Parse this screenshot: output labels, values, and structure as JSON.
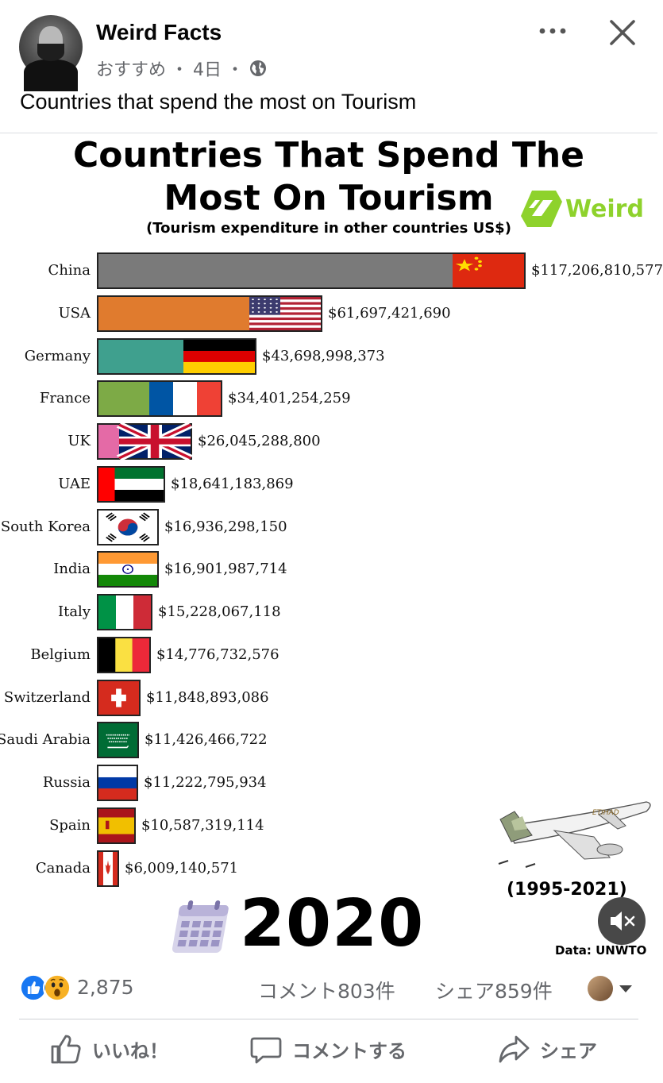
{
  "post": {
    "page_name": "Weird Facts",
    "meta_label": "おすすめ",
    "meta_time": "4日",
    "meta_sep": "・",
    "caption": "Countries that spend the most on Tourism"
  },
  "video": {
    "title_line1": "Countries That Spend The",
    "title_line2": "Most On Tourism",
    "subtitle": "(Tourism expenditure in other countries US$)",
    "logo_text": "Weird",
    "year": "2020",
    "period": "(1995-2021)",
    "source": "Data: UNWTO",
    "plane_livery": "ETIHAD"
  },
  "chart_data": {
    "type": "bar",
    "orientation": "horizontal",
    "title": "Countries That Spend The Most On Tourism",
    "subtitle": "(Tourism expenditure in other countries US$)",
    "categories": [
      "China",
      "USA",
      "Germany",
      "France",
      "UK",
      "UAE",
      "South Korea",
      "India",
      "Italy",
      "Belgium",
      "Switzerland",
      "Saudi Arabia",
      "Russia",
      "Spain",
      "Canada"
    ],
    "values": [
      117206810577,
      61697421690,
      43698998373,
      34401254259,
      26045288800,
      18641183869,
      16936298150,
      16901987714,
      15228067118,
      14776732576,
      11848893086,
      11426466722,
      11222795934,
      10587319114,
      6009140571
    ],
    "value_labels": [
      "$117,206,810,577",
      "$61,697,421,690",
      "$43,698,998,373",
      "$34,401,254,259",
      "$26,045,288,800",
      "$18,641,183,869",
      "$16,936,298,150",
      "$16,901,987,714",
      "$15,228,067,118",
      "$14,776,732,576",
      "$11,848,893,086",
      "$11,426,466,722",
      "$11,222,795,934",
      "$10,587,319,114",
      "$6,009,140,571"
    ],
    "bar_colors": [
      "#7a7a7a",
      "#e07b2e",
      "#3fa08e",
      "#7daa46",
      "#e46aa6",
      "#d8362f",
      "#b8964a",
      "#d9a43b",
      "#4aa35a",
      "#7a9a3c",
      "#d93a2f",
      "#2e6b3f",
      "#d33a3a",
      "#c8432f",
      "#e23c2e"
    ],
    "flags": [
      "cn",
      "us",
      "de",
      "fr",
      "gb",
      "ae",
      "kr",
      "in",
      "it",
      "be",
      "ch",
      "sa",
      "ru",
      "es",
      "ca"
    ],
    "year": "2020",
    "xlim": [
      0,
      117206810577
    ],
    "grid": false,
    "legend": "none"
  },
  "stats": {
    "reaction_count": "2,875",
    "comments": "コメント803件",
    "shares": "シェア859件"
  },
  "actions": {
    "like": "いいね！",
    "comment": "コメントする",
    "share": "シェア"
  },
  "icons": {
    "more": "more-dots-icon",
    "close": "close-icon",
    "globe": "globe-icon",
    "like_reaction": "like-reaction-icon",
    "wow_reaction": "wow-reaction-icon",
    "mute": "speaker-muted-icon"
  },
  "colors": {
    "facebook_blue": "#1877f2",
    "muted_text": "#65676b",
    "logo_green": "#8ed22c"
  }
}
